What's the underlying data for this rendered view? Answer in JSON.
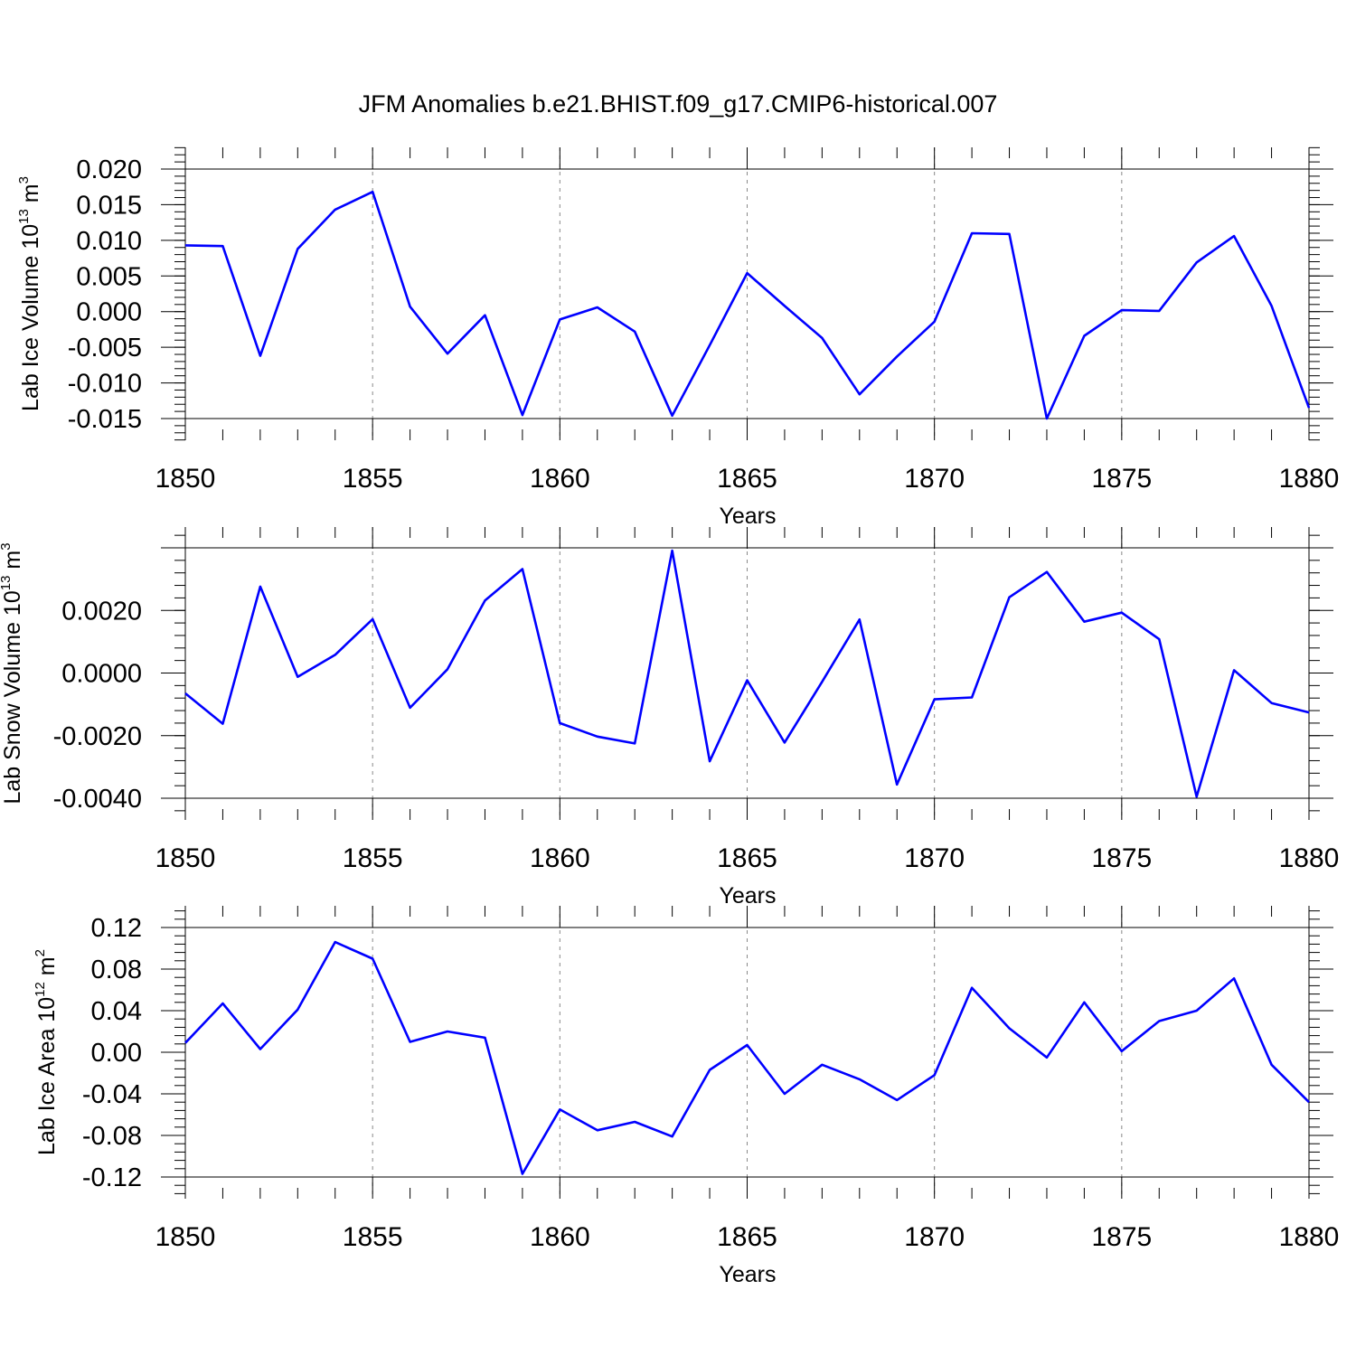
{
  "figure": {
    "title": "JFM Anomalies b.e21.BHIST.f09_g17.CMIP6-historical.007",
    "line_color": "#0000ff",
    "grid_color": "#888888"
  },
  "chart_data": [
    {
      "type": "line",
      "ylabel_parts": {
        "text": "Lab Ice Volume 10",
        "exp": "13",
        "unit": " m",
        "unit_exp": "3"
      },
      "xlabel": "Years",
      "xlim": [
        1850,
        1880
      ],
      "ylim": [
        -0.015,
        0.02
      ],
      "yticks": [
        0.02,
        0.015,
        0.01,
        0.005,
        0.0,
        -0.005,
        -0.01,
        -0.015
      ],
      "ytick_labels": [
        "0.020",
        "0.015",
        "0.010",
        "0.005",
        "0.000",
        "-0.005",
        "-0.010",
        "-0.015"
      ],
      "xticks": [
        1850,
        1855,
        1860,
        1865,
        1870,
        1875,
        1880
      ],
      "xtick_labels": [
        "1850",
        "1855",
        "1860",
        "1865",
        "1870",
        "1875",
        "1880"
      ],
      "grid": "x-dashed",
      "x": [
        1850,
        1851,
        1852,
        1853,
        1854,
        1855,
        1856,
        1857,
        1858,
        1859,
        1860,
        1861,
        1862,
        1863,
        1864,
        1865,
        1866,
        1867,
        1868,
        1869,
        1870,
        1871,
        1872,
        1873,
        1874,
        1875,
        1876,
        1877,
        1878,
        1879,
        1880
      ],
      "values": [
        0.0093,
        0.0092,
        -0.0062,
        0.0088,
        0.0143,
        0.0168,
        0.0007,
        -0.0059,
        -0.0005,
        -0.0145,
        -0.0011,
        0.0006,
        -0.0028,
        -0.0146,
        -0.0047,
        0.0054,
        0.0008,
        -0.0037,
        -0.0116,
        -0.0063,
        -0.0014,
        0.011,
        0.0109,
        -0.015,
        -0.0034,
        0.0002,
        0.0001,
        0.0069,
        0.0106,
        0.0008,
        -0.0135
      ]
    },
    {
      "type": "line",
      "ylabel_parts": {
        "text": "Lab Snow Volume 10",
        "exp": "13",
        "unit": " m",
        "unit_exp": "3"
      },
      "xlabel": "Years",
      "xlim": [
        1850,
        1880
      ],
      "ylim": [
        -0.004,
        0.004
      ],
      "yticks": [
        0.002,
        0.0,
        -0.002,
        -0.004
      ],
      "ytick_labels": [
        "0.0020",
        "0.0000",
        "-0.0020",
        "-0.0040"
      ],
      "xticks": [
        1850,
        1855,
        1860,
        1865,
        1870,
        1875,
        1880
      ],
      "xtick_labels": [
        "1850",
        "1855",
        "1860",
        "1865",
        "1870",
        "1875",
        "1880"
      ],
      "grid": "x-dashed",
      "x": [
        1850,
        1851,
        1852,
        1853,
        1854,
        1855,
        1856,
        1857,
        1858,
        1859,
        1860,
        1861,
        1862,
        1863,
        1864,
        1865,
        1866,
        1867,
        1868,
        1869,
        1870,
        1871,
        1872,
        1873,
        1874,
        1875,
        1876,
        1877,
        1878,
        1879,
        1880
      ],
      "values": [
        -0.00065,
        -0.00162,
        0.00276,
        -0.00012,
        0.00058,
        0.00172,
        -0.00111,
        0.00012,
        0.00232,
        0.00332,
        -0.0016,
        -0.00203,
        -0.00225,
        0.00391,
        -0.00282,
        -0.00023,
        -0.00222,
        -0.00028,
        0.00171,
        -0.00356,
        -0.00084,
        -0.00078,
        0.00242,
        0.00323,
        0.00164,
        0.00193,
        0.00108,
        -0.00395,
        9e-05,
        -0.00096,
        -0.00126
      ]
    },
    {
      "type": "line",
      "ylabel_parts": {
        "text": "Lab Ice Area 10",
        "exp": "12",
        "unit": " m",
        "unit_exp": "2"
      },
      "xlabel": "Years",
      "xlim": [
        1850,
        1880
      ],
      "ylim": [
        -0.12,
        0.12
      ],
      "yticks": [
        0.12,
        0.08,
        0.04,
        0.0,
        -0.04,
        -0.08,
        -0.12
      ],
      "ytick_labels": [
        "0.12",
        "0.08",
        "0.04",
        "0.00",
        "-0.04",
        "-0.08",
        "-0.12"
      ],
      "xticks": [
        1850,
        1855,
        1860,
        1865,
        1870,
        1875,
        1880
      ],
      "xtick_labels": [
        "1850",
        "1855",
        "1860",
        "1865",
        "1870",
        "1875",
        "1880"
      ],
      "grid": "x-dashed",
      "x": [
        1850,
        1851,
        1852,
        1853,
        1854,
        1855,
        1856,
        1857,
        1858,
        1859,
        1860,
        1861,
        1862,
        1863,
        1864,
        1865,
        1866,
        1867,
        1868,
        1869,
        1870,
        1871,
        1872,
        1873,
        1874,
        1875,
        1876,
        1877,
        1878,
        1879,
        1880
      ],
      "values": [
        0.009,
        0.047,
        0.003,
        0.041,
        0.106,
        0.09,
        0.01,
        0.02,
        0.014,
        -0.117,
        -0.055,
        -0.075,
        -0.067,
        -0.081,
        -0.017,
        0.007,
        -0.04,
        -0.012,
        -0.026,
        -0.046,
        -0.022,
        0.062,
        0.023,
        -0.005,
        0.048,
        0.001,
        0.03,
        0.04,
        0.071,
        -0.012,
        -0.048
      ]
    }
  ]
}
